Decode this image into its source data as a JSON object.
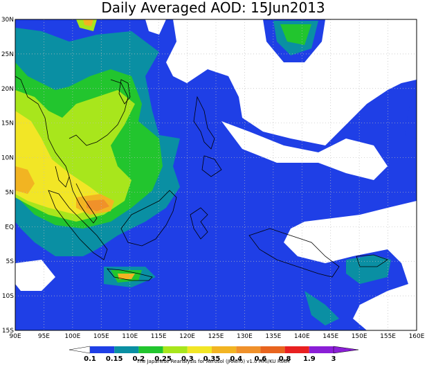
{
  "title": "Daily Averaged AOD: 15Jun2013",
  "credit": "The Japanese Reanalysis for Aerosol (JRAero) v1.0 MRI/KU RIAM",
  "colors": {
    "white": "#ffffff",
    "blue": "#1f3fe6",
    "teal": "#0a8fa3",
    "green": "#22c52e",
    "lime": "#a8e61c",
    "yellow": "#f2e626",
    "gold": "#f2b422",
    "orange": "#f0912a",
    "darkorange": "#e8641e",
    "red": "#e82020",
    "purple": "#8a1ed6"
  },
  "chart_data": {
    "type": "heatmap",
    "title": "Daily Averaged AOD: 15Jun2013",
    "x_ticks": [
      "90E",
      "95E",
      "100E",
      "105E",
      "110E",
      "115E",
      "120E",
      "125E",
      "130E",
      "135E",
      "140E",
      "145E",
      "150E",
      "155E",
      "160E"
    ],
    "y_ticks": [
      "30N",
      "25N",
      "20N",
      "15N",
      "10N",
      "5N",
      "EQ",
      "5S",
      "10S",
      "15S"
    ],
    "lon_range": [
      90,
      160
    ],
    "lat_range": [
      -15,
      30
    ],
    "grid": true,
    "colorbar": {
      "labels": [
        "0.1",
        "0.15",
        "0.2",
        "0.25",
        "0.3",
        "0.35",
        "0.4",
        "0.6",
        "0.8",
        "1.9",
        "3"
      ],
      "colors": [
        "#ffffff",
        "#1f3fe6",
        "#0a8fa3",
        "#22c52e",
        "#a8e61c",
        "#f2e626",
        "#f2b422",
        "#f0912a",
        "#e8641e",
        "#e82020",
        "#8a1ed6"
      ]
    }
  }
}
